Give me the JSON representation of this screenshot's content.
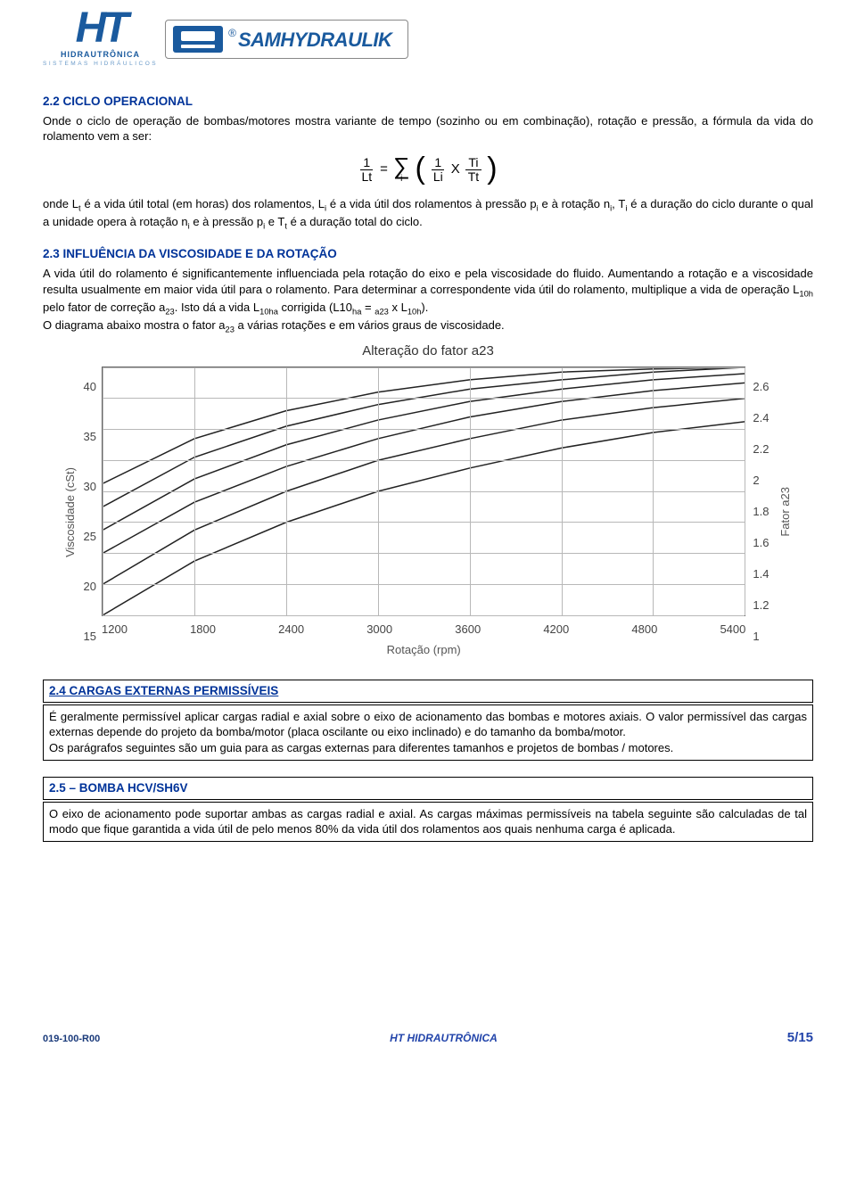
{
  "header": {
    "logo_ht": {
      "main": "HT",
      "sub1": "HIDRAUTRÔNICA",
      "sub2": "SISTEMAS HIDRÁULICOS"
    },
    "logo_sam": {
      "text": "SAMHYDRAULIK",
      "reg": "®"
    }
  },
  "section22": {
    "title": "2.2 CICLO OPERACIONAL",
    "intro": "Onde o ciclo de operação de bombas/motores mostra variante de tempo (sozinho ou em combinação), rotação e pressão, a fórmula da vida do rolamento vem a ser:",
    "desc_html": "onde L<sub>t</sub> é a vida útil total (em horas) dos rolamentos, L<sub>i</sub> é a vida útil dos rolamentos à pressão p<sub>i</sub> e à rotação n<sub>i</sub>, T<sub>i</sub> é a duração do ciclo durante o qual a unidade opera à rotação n<sub>i</sub> e à pressão p<sub>i</sub> e T<sub>t</sub> é a duração total do ciclo.",
    "formula": {
      "lhs_num": "1",
      "lhs_den": "Lt",
      "eq": "=",
      "sigma_sub": "i",
      "term1_num": "1",
      "term1_den": "Li",
      "mult": "X",
      "term2_num": "Ti",
      "term2_den": "Tt"
    }
  },
  "section23": {
    "title": "2.3 INFLUÊNCIA DA VISCOSIDADE E DA ROTAÇÃO",
    "body_html": "A vida útil do rolamento é significantemente influenciada pela rotação do eixo e pela viscosidade do fluido. Aumentando a rotação e a viscosidade resulta usualmente em maior vida útil para o rolamento. Para determinar a correspondente vida útil do rolamento, multiplique a vida de operação L<sub>10h</sub> pelo fator de correção a<sub>23</sub>. Isto dá a vida L<sub>10ha</sub> corrigida (L10<sub>ha</sub> = <sub>a23</sub> x L<sub>10h</sub>).\nO diagrama abaixo mostra o fator a<sub>23</sub> a várias rotações e em vários graus de viscosidade."
  },
  "chart": {
    "title": "Alteração do fator a23",
    "x_label": "Rotação (rpm)",
    "y_label_left": "Viscosidade (cSt)",
    "y_label_right": "Fator a23",
    "x_ticks": [
      "1200",
      "1800",
      "2400",
      "3000",
      "3600",
      "4200",
      "4800",
      "5400"
    ],
    "y_ticks_left": [
      "40",
      "35",
      "30",
      "25",
      "20",
      "15"
    ],
    "y_ticks_right": [
      "2.6",
      "2.4",
      "2.2",
      "2",
      "1.8",
      "1.6",
      "1.4",
      "1.2",
      "1"
    ],
    "grid_color": "#b8b8b8",
    "border_color": "#666666",
    "curve_color": "#222222",
    "curve_width": 1.5,
    "y_right_min": 1.0,
    "y_right_max": 2.6,
    "x_min": 1200,
    "x_max": 5400,
    "curves": [
      [
        [
          1200,
          1.0
        ],
        [
          1800,
          1.35
        ],
        [
          2400,
          1.6
        ],
        [
          3000,
          1.8
        ],
        [
          3600,
          1.95
        ],
        [
          4200,
          2.08
        ],
        [
          4800,
          2.18
        ],
        [
          5400,
          2.25
        ]
      ],
      [
        [
          1200,
          1.2
        ],
        [
          1800,
          1.55
        ],
        [
          2400,
          1.8
        ],
        [
          3000,
          2.0
        ],
        [
          3600,
          2.14
        ],
        [
          4200,
          2.26
        ],
        [
          4800,
          2.34
        ],
        [
          5400,
          2.4
        ]
      ],
      [
        [
          1200,
          1.4
        ],
        [
          1800,
          1.73
        ],
        [
          2400,
          1.96
        ],
        [
          3000,
          2.14
        ],
        [
          3600,
          2.28
        ],
        [
          4200,
          2.38
        ],
        [
          4800,
          2.45
        ],
        [
          5400,
          2.5
        ]
      ],
      [
        [
          1200,
          1.55
        ],
        [
          1800,
          1.88
        ],
        [
          2400,
          2.1
        ],
        [
          3000,
          2.26
        ],
        [
          3600,
          2.38
        ],
        [
          4200,
          2.46
        ],
        [
          4800,
          2.52
        ],
        [
          5400,
          2.56
        ]
      ],
      [
        [
          1200,
          1.7
        ],
        [
          1800,
          2.02
        ],
        [
          2400,
          2.22
        ],
        [
          3000,
          2.36
        ],
        [
          3600,
          2.46
        ],
        [
          4200,
          2.52
        ],
        [
          4800,
          2.57
        ],
        [
          5400,
          2.6
        ]
      ],
      [
        [
          1200,
          1.85
        ],
        [
          1800,
          2.14
        ],
        [
          2400,
          2.32
        ],
        [
          3000,
          2.44
        ],
        [
          3600,
          2.52
        ],
        [
          4200,
          2.57
        ],
        [
          4800,
          2.59
        ],
        [
          5400,
          2.6
        ]
      ]
    ]
  },
  "section24": {
    "title": "2.4 CARGAS EXTERNAS PERMISSÍVEIS",
    "body": "É geralmente permissível aplicar cargas radial e axial sobre o eixo de acionamento das bombas e motores axiais. O valor permissível das cargas externas depende do projeto da bomba/motor (placa oscilante ou eixo inclinado) e do tamanho da bomba/motor.\nOs parágrafos seguintes são um guia para as cargas externas para diferentes tamanhos e projetos de bombas / motores."
  },
  "section25": {
    "title": "2.5 – BOMBA HCV/SH6V",
    "body": "O eixo de acionamento pode suportar ambas as cargas radial e axial. As cargas máximas permissíveis na tabela seguinte são calculadas de tal modo que fique garantida a vida útil de pelo menos 80% da vida útil dos rolamentos aos quais nenhuma carga é aplicada."
  },
  "footer": {
    "left": "019-100-R00",
    "center": "HT HIDRAUTRÔNICA",
    "right": "5/15"
  }
}
